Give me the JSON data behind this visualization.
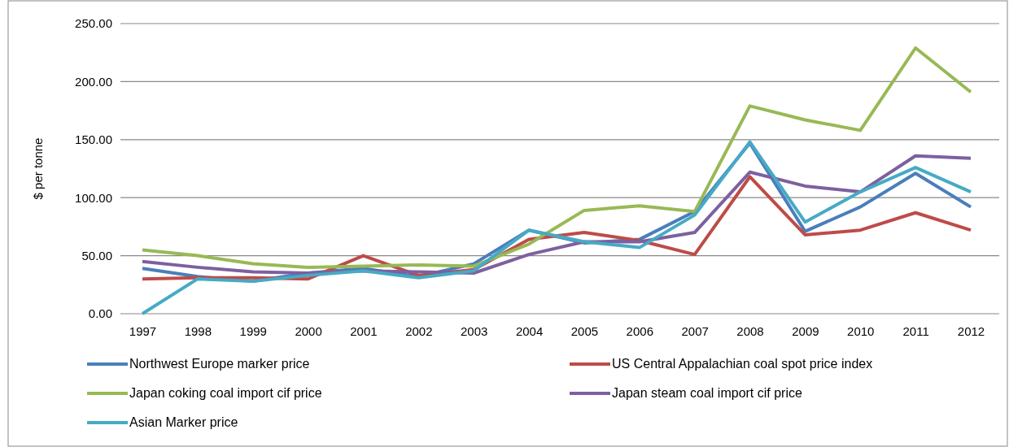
{
  "chart_data": {
    "type": "line",
    "ylabel": "$ per tonne",
    "categories": [
      "1997",
      "1998",
      "1999",
      "2000",
      "2001",
      "2002",
      "2003",
      "2004",
      "2005",
      "2006",
      "2007",
      "2008",
      "2009",
      "2010",
      "2011",
      "2012"
    ],
    "ylim": [
      0,
      250
    ],
    "yticks": [
      {
        "value": 0,
        "label": "0.00"
      },
      {
        "value": 50,
        "label": "50.00"
      },
      {
        "value": 100,
        "label": "100.00"
      },
      {
        "value": 150,
        "label": "150.00"
      },
      {
        "value": 200,
        "label": "200.00"
      },
      {
        "value": 250,
        "label": "250.00"
      }
    ],
    "grid": "y",
    "legend": "bottom",
    "marker": "none",
    "line_style": "solid",
    "series": [
      {
        "name": "Northwest Europe marker price",
        "color": "#4a7ebb",
        "values": [
          39,
          32,
          28,
          35,
          39,
          32,
          43,
          72,
          61,
          64,
          88,
          147,
          71,
          92,
          121,
          92
        ]
      },
      {
        "name": "US Central Appalachian coal spot price index",
        "color": "#be4b48",
        "values": [
          30,
          31,
          31,
          30,
          50,
          33,
          38,
          64,
          70,
          63,
          51,
          118,
          68,
          72,
          87,
          72
        ]
      },
      {
        "name": "Japan coking coal import cif price",
        "color": "#98b954",
        "values": [
          55,
          50,
          43,
          40,
          41,
          42,
          41,
          60,
          89,
          93,
          88,
          179,
          167,
          158,
          229,
          191
        ]
      },
      {
        "name": "Japan steam coal import cif price",
        "color": "#7d60a0",
        "values": [
          45,
          40,
          36,
          35,
          37,
          36,
          35,
          51,
          62,
          62,
          70,
          122,
          110,
          105,
          136,
          134
        ]
      },
      {
        "name": "Asian Marker price",
        "color": "#46aac5",
        "values": [
          0,
          30,
          28,
          33,
          37,
          31,
          37,
          72,
          62,
          57,
          85,
          148,
          79,
          105,
          126,
          105
        ]
      }
    ]
  }
}
